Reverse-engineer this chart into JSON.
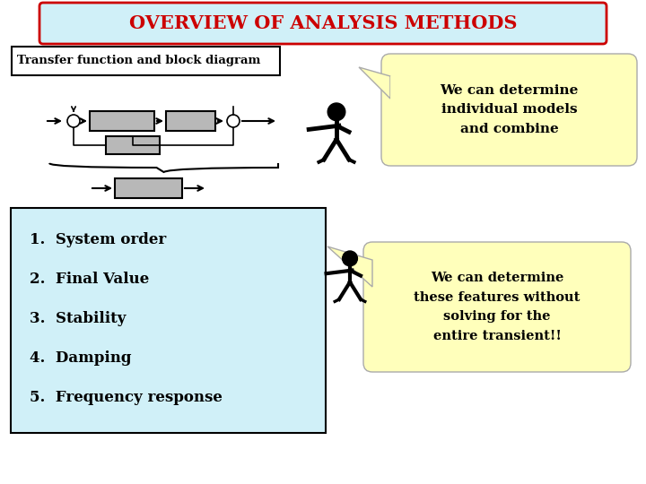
{
  "title": "OVERVIEW OF ANALYSIS METHODS",
  "title_color": "#cc0000",
  "title_bg": "#d0f0f8",
  "title_border": "#cc0000",
  "subtitle": "Transfer function and block diagram",
  "subtitle_bg": "#ffffff",
  "subtitle_border": "#000000",
  "bubble1_text": "We can determine\nindividual models\nand combine",
  "bubble2_text": "We can determine\nthese features without\nsolving for the\nentire transient!!",
  "bubble_bg": "#ffffbb",
  "bubble_border": "#aaaaaa",
  "list_items": [
    "1.  System order",
    "2.  Final Value",
    "3.  Stability",
    "4.  Damping",
    "5.  Frequency response"
  ],
  "list_bg": "#d0f0f8",
  "list_border": "#000000",
  "bg_color": "#ffffff",
  "block_color": "#b8b8b8",
  "block_border": "#000000",
  "fig_w": 7.2,
  "fig_h": 5.4,
  "dpi": 100
}
